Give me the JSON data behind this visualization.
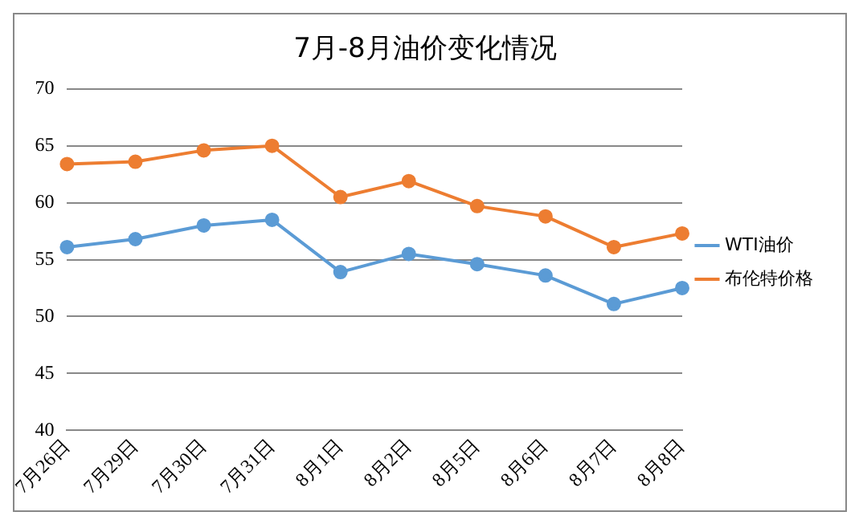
{
  "chart_data": {
    "type": "line",
    "title": "7月-8月油价变化情况",
    "categories": [
      "7月26日",
      "7月29日",
      "7月30日",
      "7月31日",
      "8月1日",
      "8月2日",
      "8月5日",
      "8月6日",
      "8月7日",
      "8月8日"
    ],
    "series": [
      {
        "name": "WTI油价",
        "color": "#5b9bd5",
        "values": [
          56.1,
          56.8,
          58.0,
          58.5,
          53.9,
          55.5,
          54.6,
          53.6,
          51.1,
          52.5
        ]
      },
      {
        "name": "布伦特价格",
        "color": "#ed7d31",
        "values": [
          63.4,
          63.6,
          64.6,
          65.0,
          60.5,
          61.9,
          59.7,
          58.8,
          56.1,
          57.3
        ]
      }
    ],
    "ylim": [
      40,
      70
    ],
    "yticks": [
      40,
      45,
      50,
      55,
      60,
      65,
      70
    ],
    "grid": "y",
    "legend": "right",
    "marker": "circle"
  }
}
